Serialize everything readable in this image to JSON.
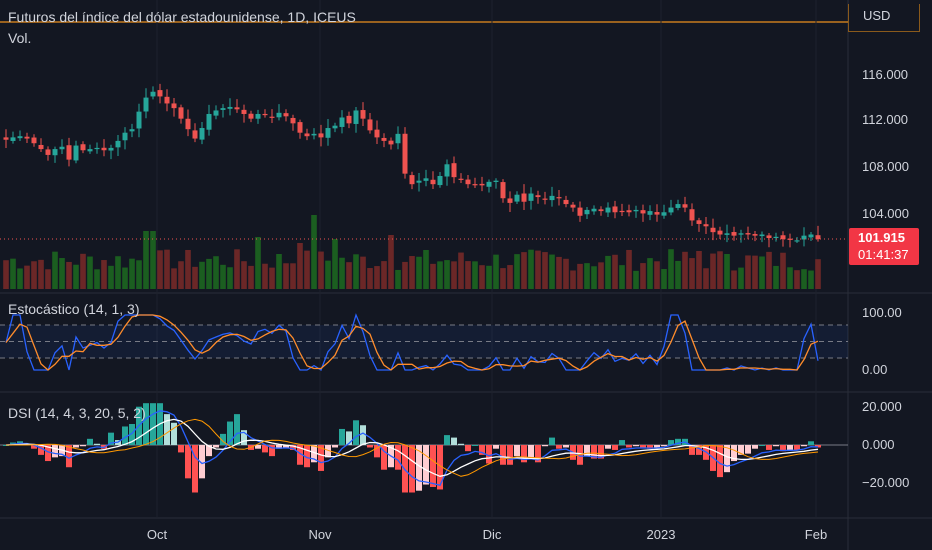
{
  "header": {
    "title": "Futuros del índice del dólar estadounidense, 1D, ICEUS",
    "volume_label": "Vol."
  },
  "currency": "USD",
  "price_badge": {
    "price": "101.915",
    "countdown": "01:41:37",
    "color": "#f23645"
  },
  "main_axis": [
    "116.000",
    "112.000",
    "108.000",
    "104.000"
  ],
  "stoch": {
    "label": "Estocástico (14, 1, 3)",
    "axis": [
      "100.00",
      "0.00"
    ]
  },
  "dsi": {
    "label": "DSI (14, 4, 3, 20, 5, 2)",
    "axis": [
      "20.000",
      "0.000",
      "−20.000"
    ]
  },
  "x_axis": [
    "Oct",
    "Nov",
    "Dic",
    "2023",
    "Feb"
  ],
  "colors": {
    "up": "#26a69a",
    "down": "#ef5350",
    "vol_up": "#1b5e20",
    "vol_down": "#6b2727",
    "stoch_k": "#2962ff",
    "stoch_d": "#ff8c2b",
    "accent": "#ff9800"
  },
  "chart_data": {
    "type": "candlestick",
    "closes": [
      110.4,
      110.6,
      110.7,
      110.5,
      110.1,
      109.6,
      109.1,
      109.6,
      109.8,
      108.7,
      109.9,
      109.5,
      109.6,
      109.7,
      109.5,
      109.7,
      110.3,
      111.0,
      111.3,
      112.8,
      114.0,
      114.5,
      114.1,
      113.5,
      113.1,
      112.2,
      111.3,
      110.5,
      111.4,
      112.6,
      112.9,
      113.1,
      113.2,
      113.0,
      112.6,
      112.2,
      112.6,
      112.5,
      112.3,
      112.7,
      112.4,
      111.8,
      111.0,
      110.7,
      110.9,
      110.6,
      111.4,
      111.6,
      112.3,
      111.8,
      112.9,
      112.2,
      111.2,
      110.6,
      110.3,
      110.0,
      110.9,
      107.5,
      106.6,
      106.9,
      107.1,
      106.6,
      107.3,
      108.3,
      107.2,
      107.0,
      106.6,
      106.6,
      106.5,
      106.8,
      106.9,
      105.4,
      105.0,
      105.7,
      105.1,
      105.8,
      105.5,
      105.3,
      105.6,
      105.4,
      104.9,
      104.6,
      103.9,
      104.4,
      104.5,
      104.3,
      104.6,
      104.2,
      104.3,
      104.2,
      104.4,
      104.1,
      104.3,
      104.0,
      104.2,
      104.6,
      104.9,
      104.6,
      103.5,
      103.2,
      103.0,
      102.5,
      102.3,
      102.4,
      102.2,
      102.4,
      102.3,
      102.2,
      102.3,
      102.0,
      102.1,
      101.9,
      101.9,
      101.8,
      102.2,
      102.3,
      101.9
    ],
    "volume_color_rule": "matches candle direction",
    "stoch_k_range": [
      0,
      100
    ],
    "dsi_range": [
      -25,
      25
    ],
    "x_ticks": [
      "Oct",
      "Nov",
      "Dic",
      "2023",
      "Feb"
    ],
    "y_ticks": [
      116,
      112,
      108,
      104
    ],
    "last_price": 101.915
  }
}
